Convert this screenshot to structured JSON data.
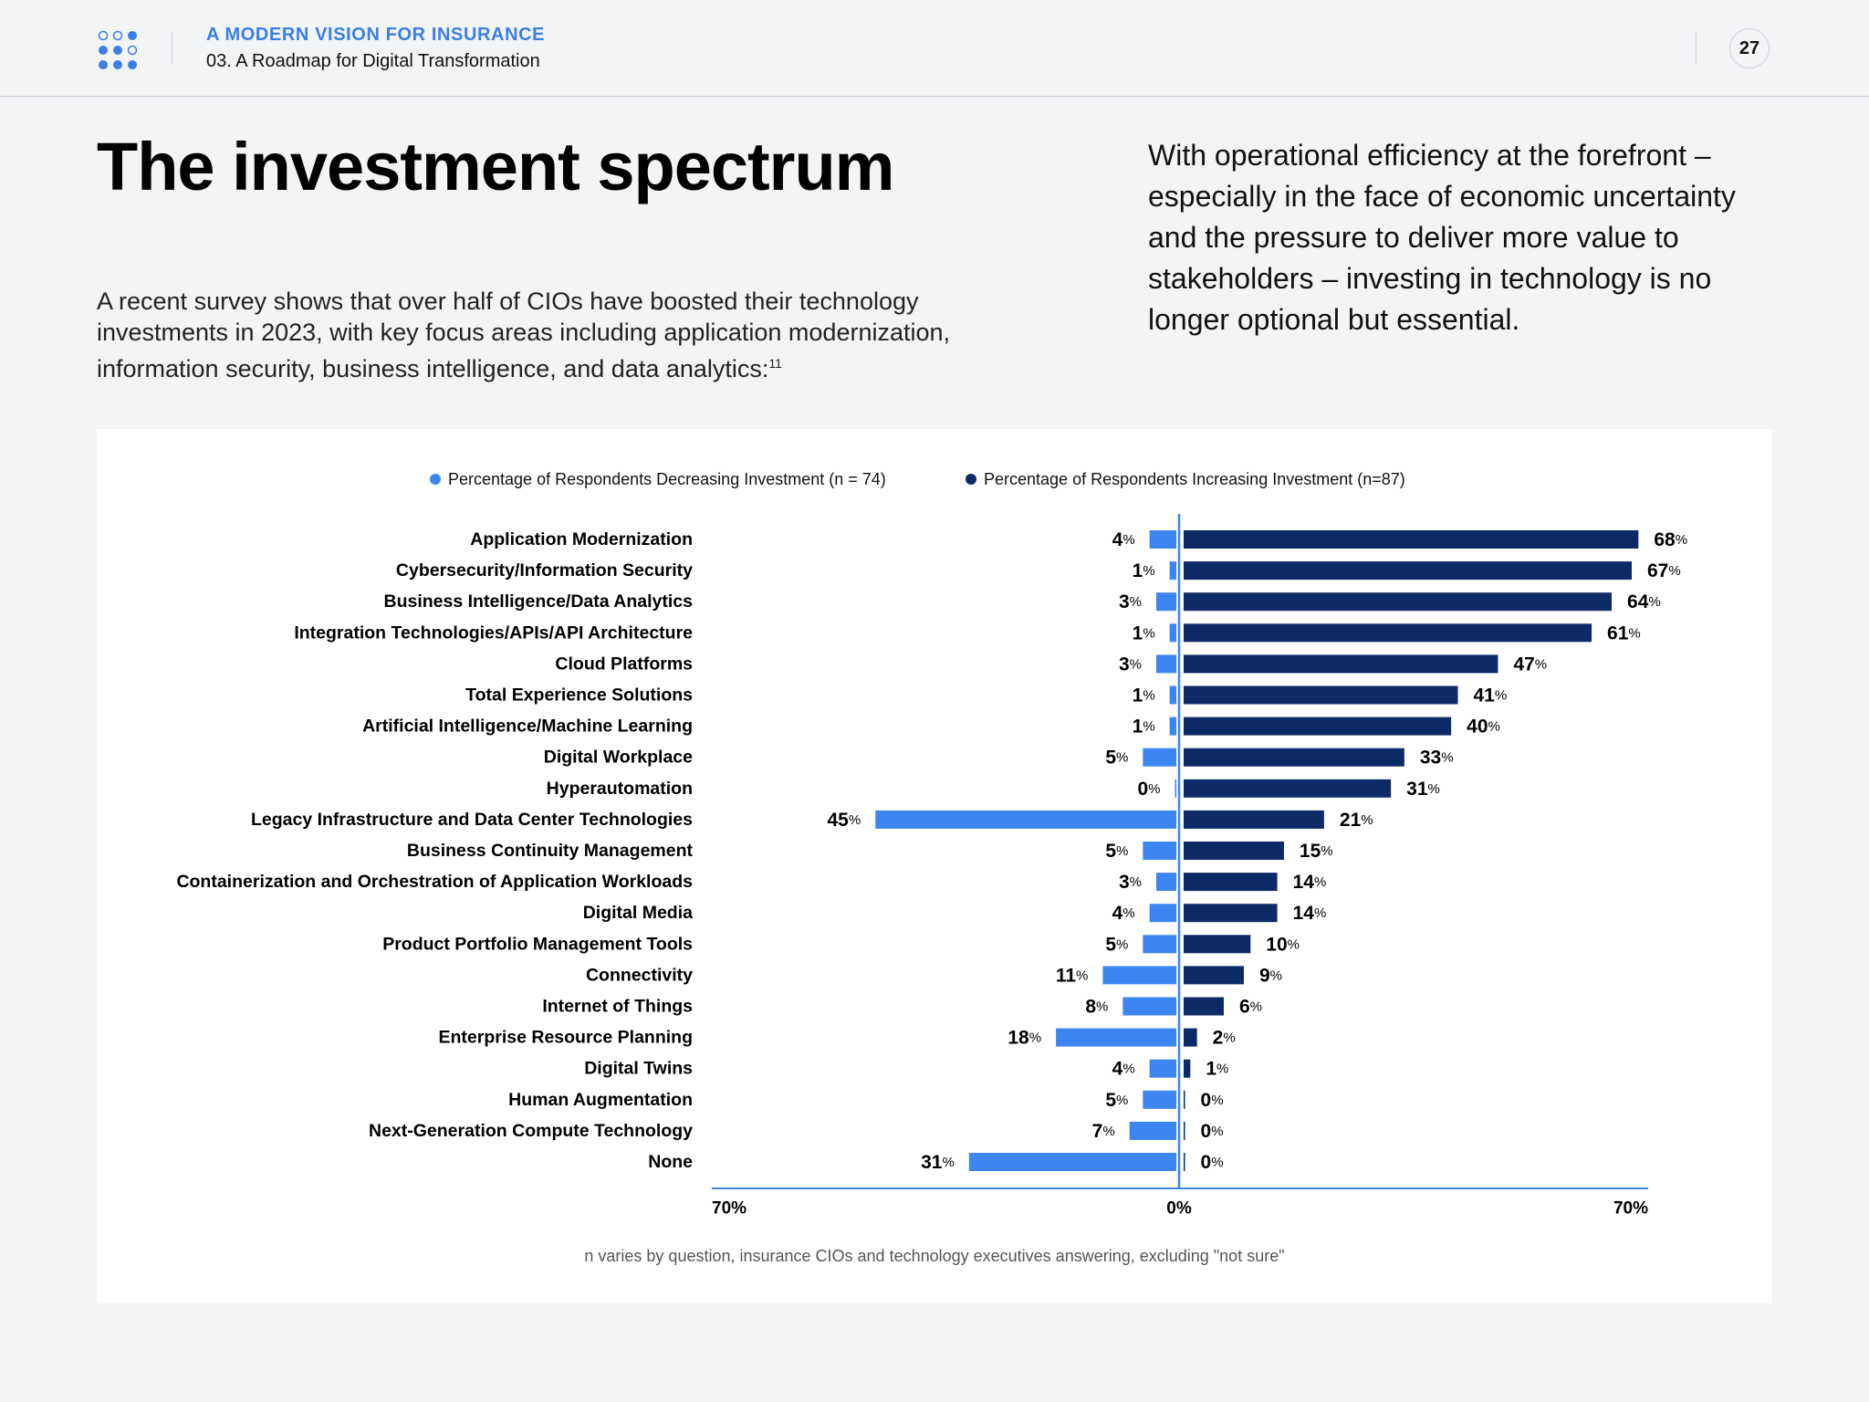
{
  "header": {
    "kicker": "A MODERN VISION FOR INSURANCE",
    "subtitle": "03. A Roadmap for Digital Transformation",
    "page_number": "27"
  },
  "title": "The investment spectrum",
  "intro": "A recent survey shows that over half of CIOs have boosted their technology investments in 2023, with key focus areas including application modernization, information security, business intelligence, and data analytics:",
  "intro_footnote_ref": "11",
  "callout": "With operational efficiency at the forefront – especially in the face of economic uncertainty and the pressure to deliver more value to stakeholders – investing in technology is no longer optional but essential.",
  "colors": {
    "decreasing": "#3d86f2",
    "increasing": "#0b2a66",
    "axis": "#3d86f2",
    "accent": "#3a7fe6"
  },
  "chart_data": {
    "type": "bar",
    "orientation": "horizontal-diverging",
    "categories": [
      "Application Modernization",
      "Cybersecurity/Information Security",
      "Business Intelligence/Data Analytics",
      "Integration Technologies/APIs/API Architecture",
      "Cloud Platforms",
      "Total Experience Solutions",
      "Artificial Intelligence/Machine Learning",
      "Digital Workplace",
      "Hyperautomation",
      "Legacy Infrastructure and Data Center Technologies",
      "Business Continuity Management",
      "Containerization and Orchestration of Application Workloads",
      "Digital Media",
      "Product Portfolio Management Tools",
      "Connectivity",
      "Internet of Things",
      "Enterprise Resource Planning",
      "Digital Twins",
      "Human Augmentation",
      "Next-Generation Compute Technology",
      "None"
    ],
    "series": [
      {
        "name": "Percentage of Respondents Decreasing Investment (n = 74)",
        "values": [
          4,
          1,
          3,
          1,
          3,
          1,
          1,
          5,
          0,
          45,
          5,
          3,
          4,
          5,
          11,
          8,
          18,
          4,
          5,
          7,
          31
        ]
      },
      {
        "name": "Percentage of Respondents Increasing Investment (n=87)",
        "values": [
          68,
          67,
          64,
          61,
          47,
          41,
          40,
          33,
          31,
          21,
          15,
          14,
          14,
          10,
          9,
          6,
          2,
          1,
          0,
          0,
          0
        ]
      }
    ],
    "axis_tick_labels": [
      "70%",
      "0%",
      "70%"
    ],
    "xlim": [
      -70,
      70
    ],
    "unit_suffix": "%"
  },
  "footnote": "n varies by question, insurance CIOs and technology executives answering, excluding \"not sure\""
}
